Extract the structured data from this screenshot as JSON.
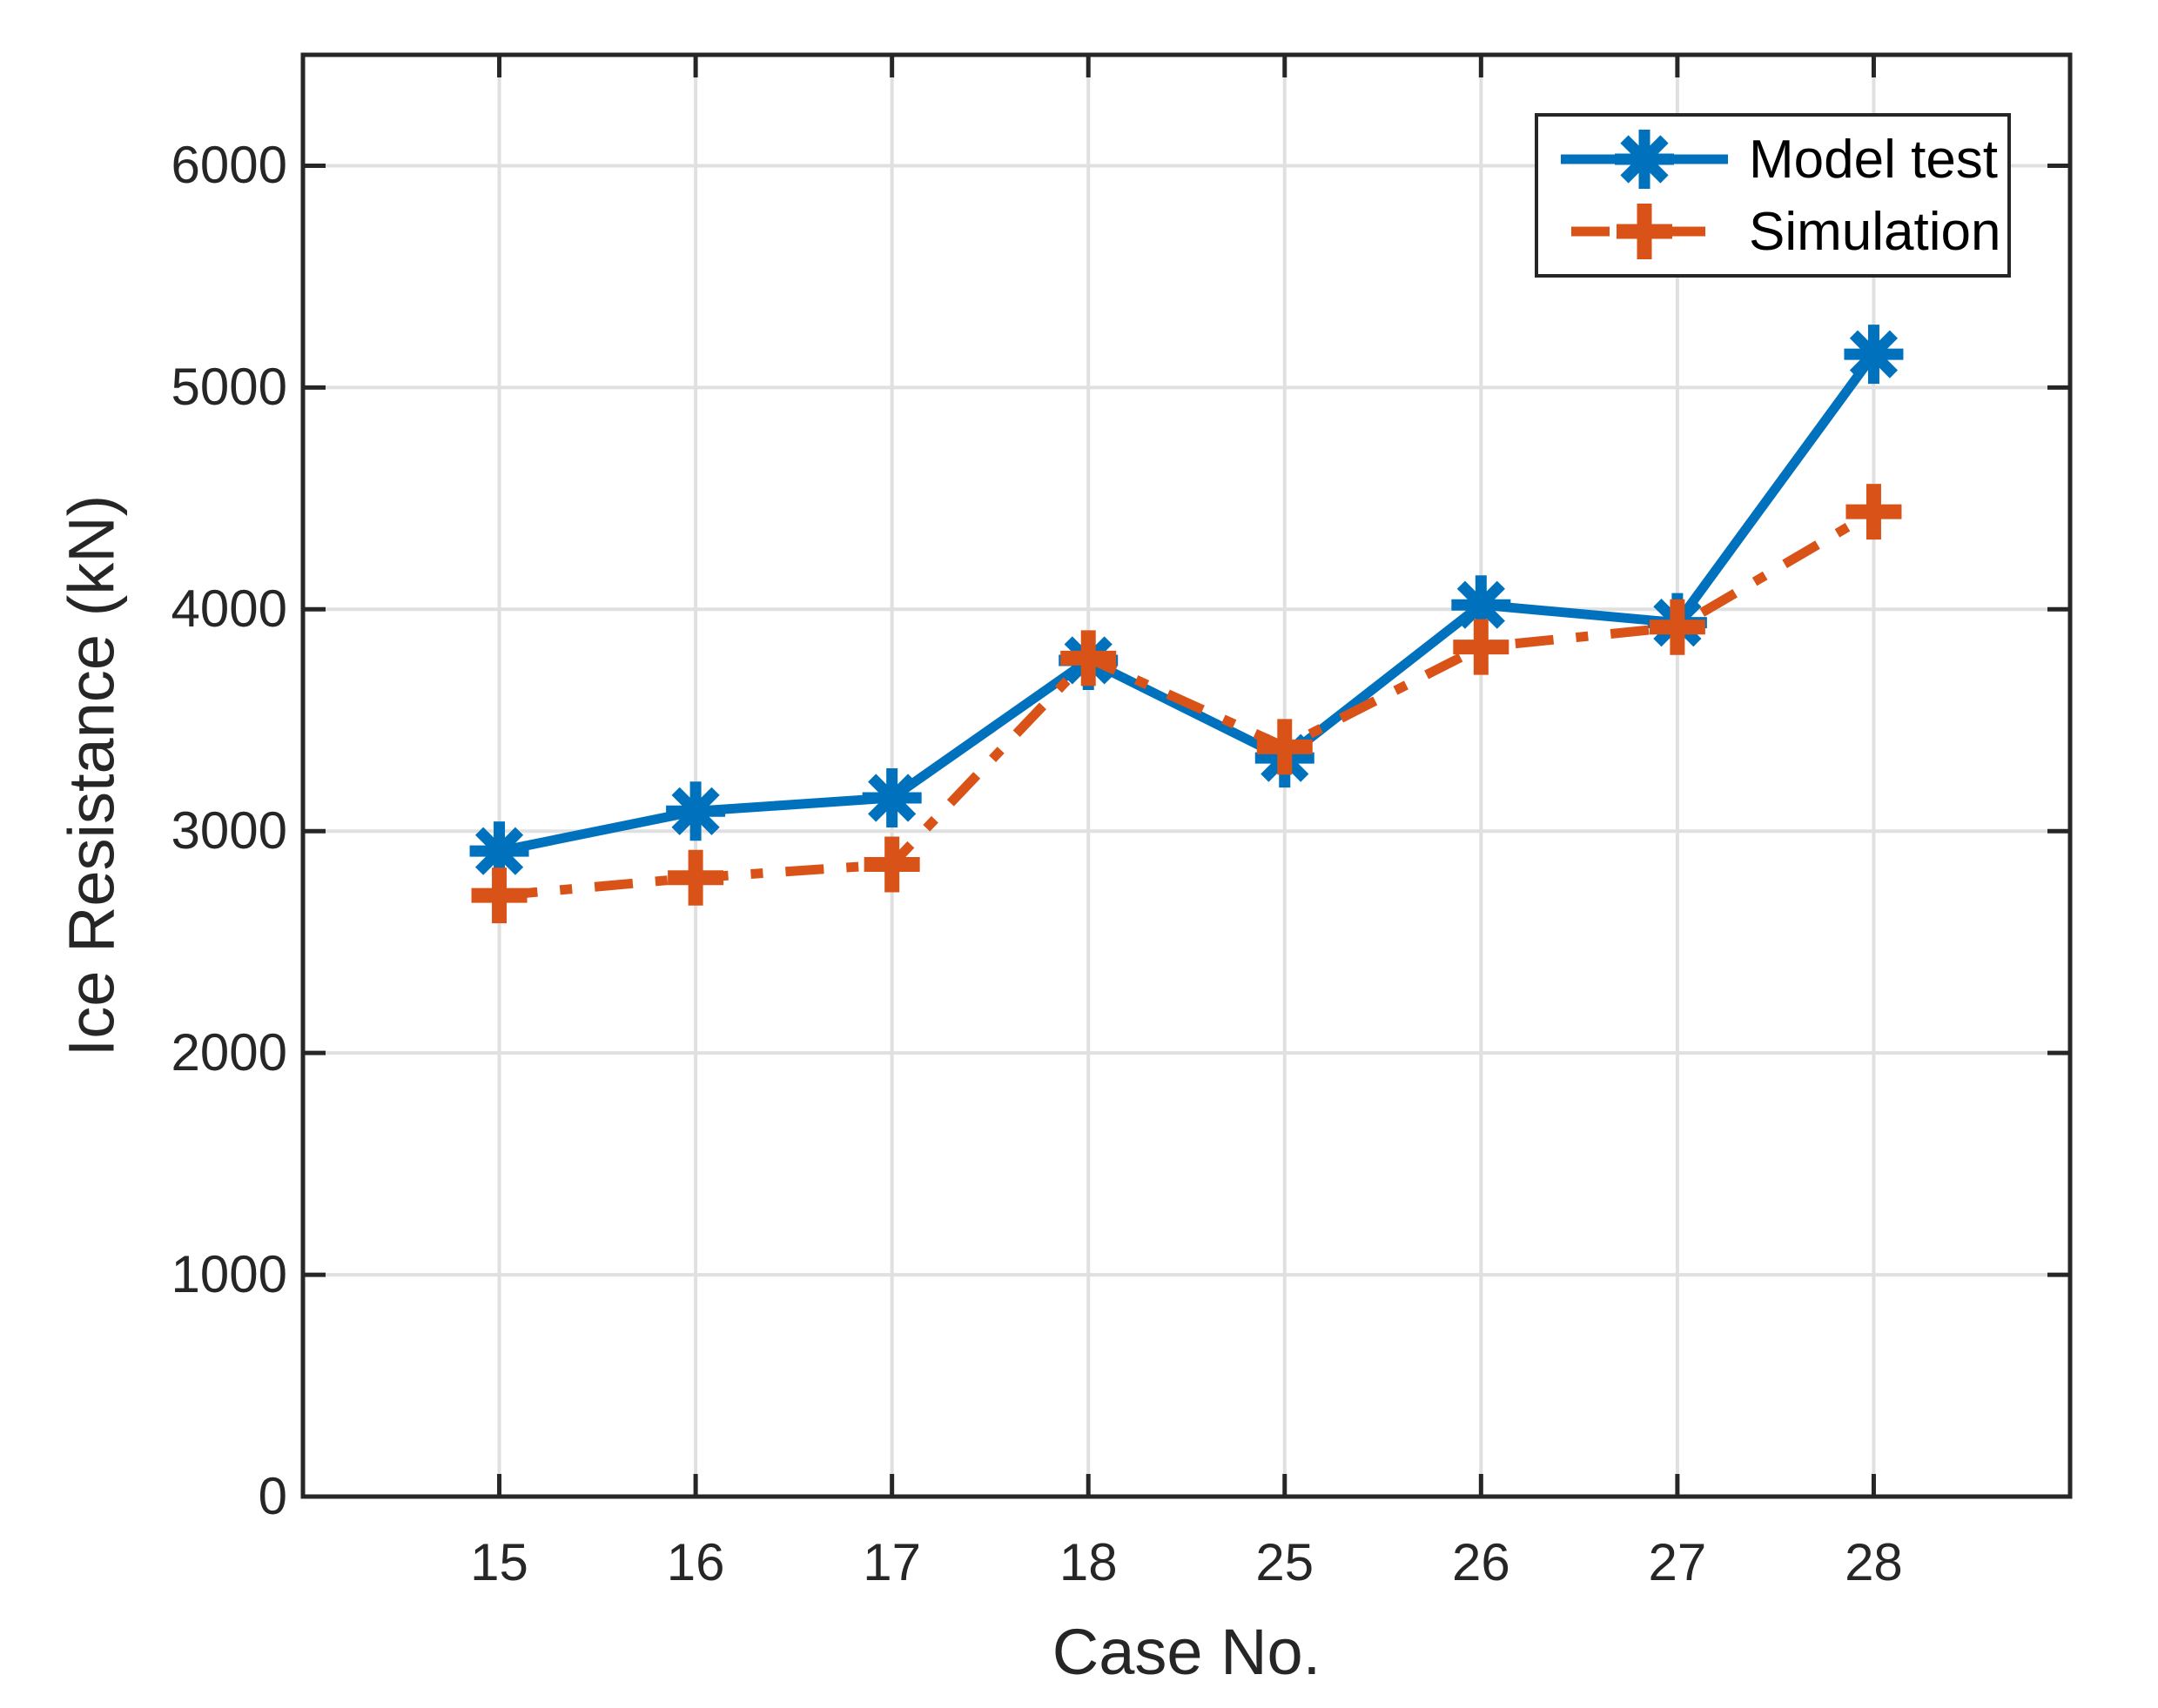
{
  "chart_data": {
    "type": "line",
    "title": "",
    "xlabel": "Case No.",
    "ylabel": "Ice Resistance (kN)",
    "categories": [
      "15",
      "16",
      "17",
      "18",
      "25",
      "26",
      "27",
      "28"
    ],
    "y_ticks": [
      0,
      1000,
      2000,
      3000,
      4000,
      5000,
      6000
    ],
    "ylim": [
      0,
      6500
    ],
    "grid": "on",
    "legend_position": "top-right",
    "series": [
      {
        "name": "Model test",
        "color": "#0072BD",
        "line_style": "solid",
        "marker": "asterisk",
        "values": [
          2910,
          3090,
          3150,
          3770,
          3330,
          4020,
          3940,
          5150
        ]
      },
      {
        "name": "Simulation",
        "color": "#D95319",
        "line_style": "dash-dot",
        "marker": "plus",
        "values": [
          2710,
          2790,
          2850,
          3780,
          3380,
          3830,
          3920,
          4440
        ]
      }
    ]
  },
  "colors": {
    "grid": "#E0E0E0",
    "axis": "#262626",
    "background": "#FFFFFF"
  }
}
